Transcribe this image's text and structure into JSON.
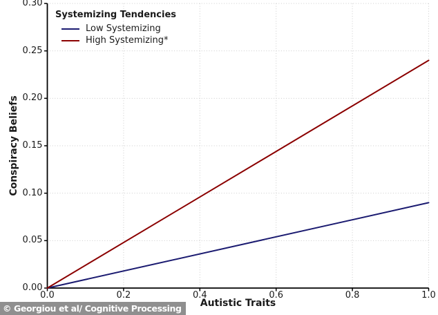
{
  "figure": {
    "background": "#ffffff"
  },
  "watermark": {
    "text": "© Georgiou et al/ Cognitive Processing",
    "bg_color": "#8f8f8f",
    "text_color": "#ffffff"
  },
  "chart_data": {
    "type": "line",
    "title": "",
    "xlabel": "Autistic Traits",
    "ylabel": "Conspiracy Beliefs",
    "xlim": [
      0.0,
      1.0
    ],
    "ylim": [
      0.0,
      0.3
    ],
    "x_ticks": [
      0.0,
      0.2,
      0.4,
      0.6,
      0.8,
      1.0
    ],
    "x_tick_labels": [
      "0.0",
      "0.2",
      "0.4",
      "0.6",
      "0.8",
      "1.0"
    ],
    "y_ticks": [
      0.0,
      0.05,
      0.1,
      0.15,
      0.2,
      0.25,
      0.3
    ],
    "y_tick_labels": [
      "0.00",
      "0.05",
      "0.10",
      "0.15",
      "0.20",
      "0.25",
      "0.30"
    ],
    "grid": {
      "visible": true,
      "style": "dotted",
      "color": "#cbcbcb"
    },
    "axis_color": "#000000",
    "legend": {
      "title": "Systemizing Tendencies",
      "position": "upper-left",
      "frame": false
    },
    "series": [
      {
        "name": "Low Systemizing",
        "color": "#1a1a70",
        "x": [
          0.0,
          1.0
        ],
        "y": [
          0.0,
          0.09
        ]
      },
      {
        "name": "High Systemizing*",
        "color": "#8b0000",
        "x": [
          0.0,
          1.0
        ],
        "y": [
          0.0,
          0.24
        ]
      }
    ]
  }
}
